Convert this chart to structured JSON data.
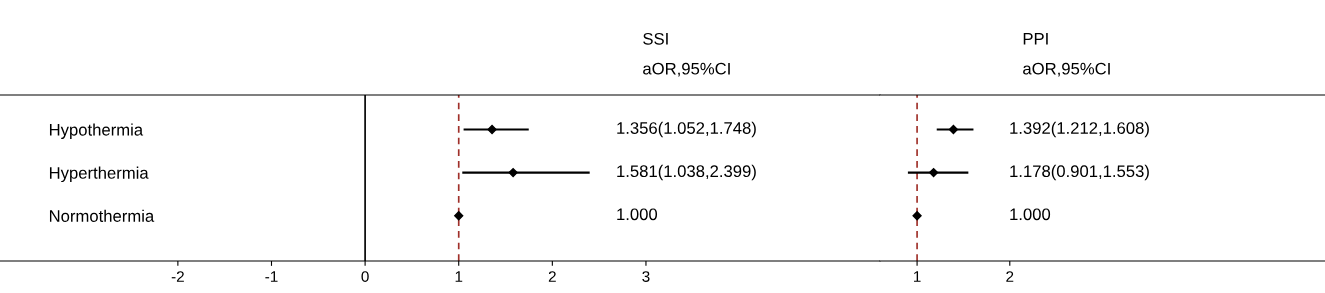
{
  "chart_data": [
    {
      "type": "scatter",
      "orientation": "horizontal",
      "title": "SSI",
      "subtitle": "aOR,95%CI",
      "categories": [
        "Hypothermia",
        "Hyperthermia",
        "Normothermia"
      ],
      "values": [
        1.356,
        1.581,
        1.0
      ],
      "errors": [
        [
          1.052,
          1.748
        ],
        [
          1.038,
          2.399
        ],
        null
      ],
      "annotations": [
        "1.356(1.052,1.748)",
        "1.581(1.038,2.399)",
        "1.000"
      ],
      "color": "#000000",
      "marker": "diamond",
      "xlim": [
        -3.9,
        5.5
      ],
      "xticks": [
        -2,
        -1,
        0,
        1,
        2,
        3
      ],
      "ref_lines": [
        {
          "axis": "x",
          "value": 0,
          "color": "#000000",
          "line_style": "solid"
        },
        {
          "axis": "x",
          "value": 1,
          "color": "#a0302a",
          "line_style": "dashed"
        }
      ]
    },
    {
      "type": "scatter",
      "orientation": "horizontal",
      "title": "PPI",
      "subtitle": "aOR,95%CI",
      "categories": [
        null,
        null,
        null
      ],
      "values": [
        1.392,
        1.178,
        1.0
      ],
      "errors": [
        [
          1.212,
          1.608
        ],
        [
          0.901,
          1.553
        ],
        null
      ],
      "annotations": [
        "1.392(1.212,1.608)",
        "1.178(0.901,1.553)",
        "1.000"
      ],
      "color": "#000000",
      "marker": "diamond",
      "xlim": [
        0.6,
        5.4
      ],
      "xticks": [
        1,
        2
      ],
      "ref_lines": [
        {
          "axis": "x",
          "value": 1,
          "color": "#a0302a",
          "line_style": "dashed"
        }
      ]
    }
  ]
}
